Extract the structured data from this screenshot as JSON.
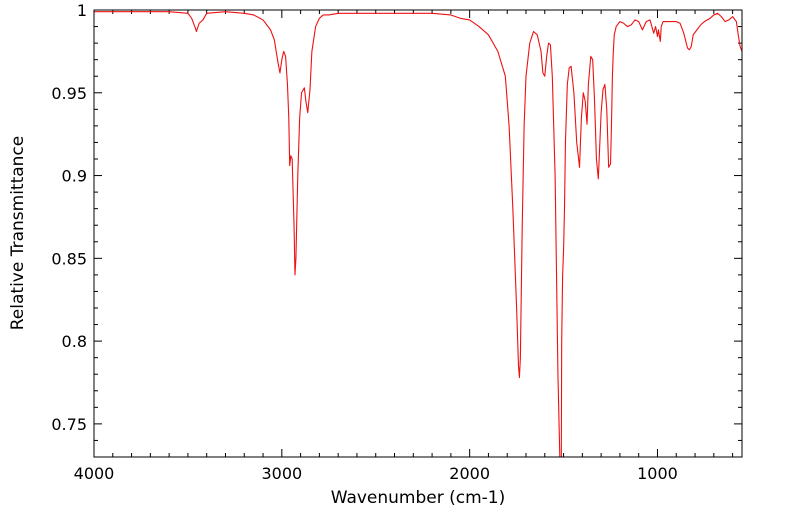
{
  "chart_data": {
    "type": "line",
    "title": "",
    "xlabel": "Wavenumber (cm-1)",
    "ylabel": "Relative Transmittance",
    "xlim": [
      4000,
      550
    ],
    "ylim": [
      0.73,
      1.0
    ],
    "x_reversed": true,
    "grid": false,
    "legend": "none",
    "x_ticks": [
      {
        "value": 4000,
        "label": "4000"
      },
      {
        "value": 3000,
        "label": "3000"
      },
      {
        "value": 2000,
        "label": "2000"
      },
      {
        "value": 1000,
        "label": "1000"
      }
    ],
    "y_ticks": [
      {
        "value": 1.0,
        "label": "1"
      },
      {
        "value": 0.95,
        "label": "0.95"
      },
      {
        "value": 0.9,
        "label": "0.9"
      },
      {
        "value": 0.85,
        "label": "0.85"
      },
      {
        "value": 0.8,
        "label": "0.8"
      },
      {
        "value": 0.75,
        "label": "0.75"
      }
    ],
    "series": [
      {
        "color": "#ee1111",
        "x": [
          4000,
          3800,
          3600,
          3500,
          3480,
          3460,
          3455,
          3440,
          3420,
          3400,
          3300,
          3200,
          3150,
          3100,
          3060,
          3040,
          3030,
          3020,
          3010,
          3000,
          2990,
          2980,
          2970,
          2963,
          2958,
          2952,
          2945,
          2935,
          2930,
          2925,
          2915,
          2905,
          2895,
          2880,
          2872,
          2862,
          2850,
          2840,
          2820,
          2800,
          2780,
          2750,
          2700,
          2600,
          2500,
          2400,
          2300,
          2200,
          2100,
          2050,
          2000,
          1950,
          1900,
          1850,
          1810,
          1790,
          1770,
          1760,
          1750,
          1740,
          1735,
          1730,
          1725,
          1720,
          1710,
          1700,
          1680,
          1660,
          1640,
          1620,
          1610,
          1600,
          1590,
          1580,
          1570,
          1560,
          1545,
          1530,
          1520,
          1515,
          1512,
          1510,
          1505,
          1500,
          1495,
          1490,
          1480,
          1470,
          1460,
          1445,
          1430,
          1415,
          1405,
          1395,
          1385,
          1375,
          1368,
          1355,
          1345,
          1335,
          1325,
          1315,
          1300,
          1290,
          1280,
          1270,
          1260,
          1250,
          1245,
          1240,
          1235,
          1230,
          1220,
          1200,
          1180,
          1160,
          1140,
          1120,
          1100,
          1080,
          1060,
          1040,
          1020,
          1010,
          1000,
          995,
          985,
          980,
          970,
          950,
          900,
          880,
          860,
          840,
          830,
          820,
          810,
          790,
          770,
          750,
          720,
          700,
          680,
          660,
          640,
          620,
          600,
          580,
          570,
          560,
          550
        ],
        "y": [
          0.999,
          0.999,
          0.999,
          0.998,
          0.995,
          0.989,
          0.987,
          0.992,
          0.994,
          0.998,
          0.999,
          0.998,
          0.997,
          0.994,
          0.988,
          0.982,
          0.975,
          0.968,
          0.962,
          0.97,
          0.975,
          0.972,
          0.955,
          0.935,
          0.906,
          0.912,
          0.91,
          0.87,
          0.84,
          0.85,
          0.9,
          0.935,
          0.95,
          0.953,
          0.945,
          0.938,
          0.952,
          0.975,
          0.99,
          0.995,
          0.997,
          0.997,
          0.998,
          0.998,
          0.998,
          0.998,
          0.998,
          0.998,
          0.997,
          0.995,
          0.994,
          0.99,
          0.985,
          0.975,
          0.96,
          0.93,
          0.88,
          0.85,
          0.82,
          0.785,
          0.778,
          0.79,
          0.83,
          0.87,
          0.93,
          0.96,
          0.98,
          0.987,
          0.985,
          0.975,
          0.962,
          0.96,
          0.972,
          0.98,
          0.979,
          0.96,
          0.9,
          0.78,
          0.73,
          0.73,
          0.73,
          0.8,
          0.84,
          0.855,
          0.88,
          0.92,
          0.955,
          0.965,
          0.966,
          0.95,
          0.92,
          0.905,
          0.935,
          0.95,
          0.945,
          0.931,
          0.955,
          0.972,
          0.97,
          0.945,
          0.91,
          0.898,
          0.938,
          0.952,
          0.955,
          0.94,
          0.905,
          0.907,
          0.93,
          0.96,
          0.975,
          0.985,
          0.99,
          0.993,
          0.992,
          0.99,
          0.991,
          0.994,
          0.993,
          0.988,
          0.993,
          0.994,
          0.986,
          0.99,
          0.984,
          0.988,
          0.981,
          0.99,
          0.993,
          0.993,
          0.993,
          0.992,
          0.986,
          0.977,
          0.976,
          0.978,
          0.985,
          0.988,
          0.991,
          0.993,
          0.995,
          0.997,
          0.998,
          0.996,
          0.993,
          0.994,
          0.996,
          0.993,
          0.985,
          0.978,
          0.975
        ]
      }
    ]
  }
}
